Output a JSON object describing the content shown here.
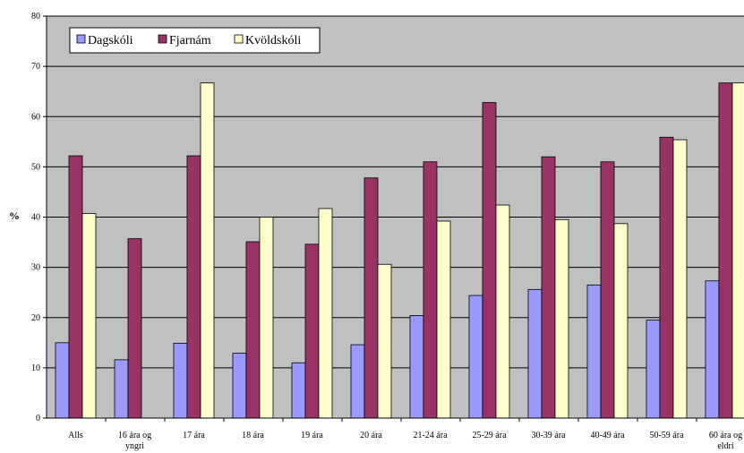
{
  "chart_data": {
    "type": "bar",
    "ylabel": "%",
    "ylim": [
      0,
      80
    ],
    "yticks": [
      "0",
      "10",
      "20",
      "30",
      "40",
      "50",
      "60",
      "70",
      "80"
    ],
    "grid": true,
    "legend_position": "top-left",
    "categories": [
      [
        "Alls"
      ],
      [
        "16 ára og",
        "yngri"
      ],
      [
        "17 ára"
      ],
      [
        "18 ára"
      ],
      [
        "19 ára"
      ],
      [
        "20 ára"
      ],
      [
        "21-24 ára"
      ],
      [
        "25-29 ára"
      ],
      [
        "30-39 ára"
      ],
      [
        "40-49 ára"
      ],
      [
        "50-59 ára"
      ],
      [
        "60 ára og",
        "eldri"
      ]
    ],
    "series": [
      {
        "name": "Dagskóli",
        "color": "#9999FF",
        "values": [
          15,
          11.6,
          14.9,
          12.9,
          11,
          14.6,
          20.4,
          24.4,
          25.6,
          26.5,
          19.5,
          27.3
        ]
      },
      {
        "name": "Fjarnám",
        "color": "#993366",
        "values": [
          52.2,
          35.7,
          52.2,
          35.1,
          34.6,
          47.8,
          51,
          62.8,
          52,
          51,
          55.9,
          66.7
        ]
      },
      {
        "name": "Kvöldskóli",
        "color": "#FFFFCC",
        "values": [
          40.7,
          null,
          66.7,
          40,
          41.7,
          30.6,
          39.2,
          42.4,
          39.5,
          38.7,
          55.4,
          66.7
        ]
      }
    ]
  }
}
